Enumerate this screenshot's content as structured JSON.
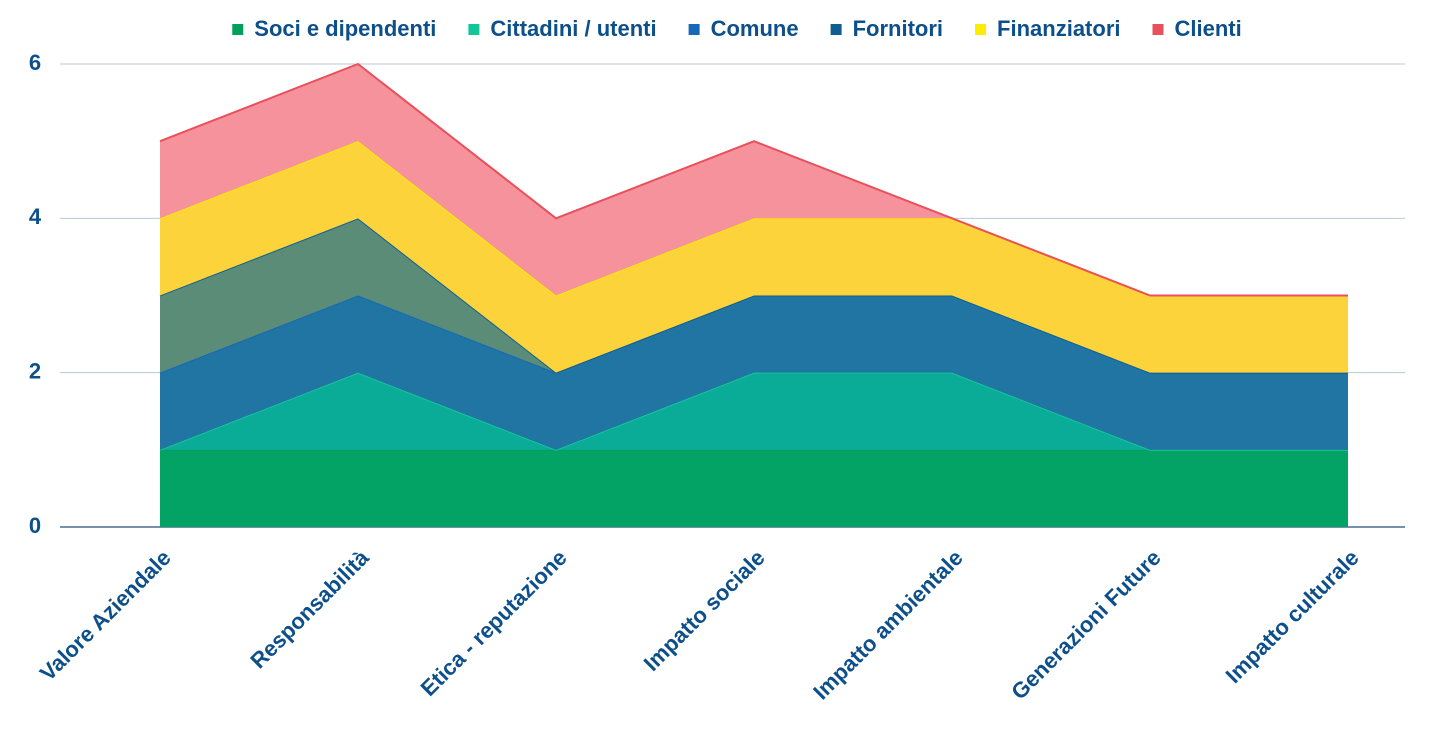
{
  "chart_data": {
    "type": "stacked_area",
    "categories": [
      "Valore Aziendale",
      "Responsabilità",
      "Etica - reputazione",
      "Impatto sociale",
      "Impatto ambientale",
      "Generazioni Future",
      "Impatto culturale"
    ],
    "series": [
      {
        "name": "Soci e dipendenti",
        "color": "#00a05a",
        "fill": "#03a366",
        "values": [
          1,
          1,
          1,
          1,
          1,
          1,
          1
        ]
      },
      {
        "name": "Cittadini / utenti",
        "color": "#13c69a",
        "fill": "#0aac97",
        "values": [
          0,
          1,
          0,
          1,
          1,
          0,
          0
        ]
      },
      {
        "name": "Comune",
        "color": "#1668b8",
        "fill": "#2075a3",
        "values": [
          1,
          1,
          1,
          1,
          1,
          1,
          1
        ]
      },
      {
        "name": "Fornitori",
        "color": "#0f5e93",
        "fill": "#5b8c78",
        "values": [
          1,
          1,
          0,
          0,
          0,
          0,
          0
        ]
      },
      {
        "name": "Finanziatori",
        "color": "#ffec00",
        "fill": "#fcd33a",
        "values": [
          1,
          1,
          1,
          1,
          1,
          1,
          1
        ]
      },
      {
        "name": "Clienti",
        "color": "#e8505c",
        "fill": "#f6929b",
        "values": [
          1,
          1,
          1,
          1,
          0,
          0,
          0
        ]
      }
    ],
    "ylim": [
      0,
      6
    ],
    "yticks": [
      0,
      2,
      4,
      6
    ],
    "grid": true,
    "legend": "top"
  }
}
